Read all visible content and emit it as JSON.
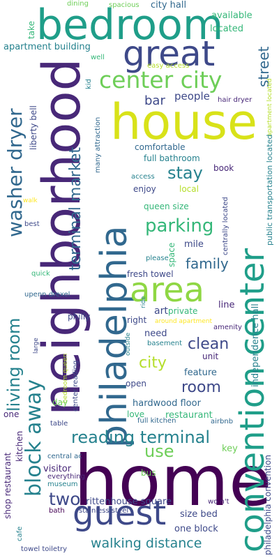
{
  "colors": {
    "background": "#ffffff",
    "palette": [
      "#440154",
      "#482878",
      "#3e4989",
      "#31688e",
      "#26828e",
      "#1f9e89",
      "#35b779",
      "#6ece58",
      "#b5de2b",
      "#fde725"
    ]
  },
  "words": {
    "home": "home",
    "neighborhood": "neighborhood",
    "house": "house",
    "bedroom": "bedroom",
    "philadelphia": "philadelphia",
    "convention_center": "convention center",
    "area": "area",
    "great": "great",
    "guest": "guest",
    "center_city": "center city",
    "block_away": "block away",
    "washer_dryer": "washer dryer",
    "living_room": "living room",
    "reading_terminal": "reading terminal",
    "terminal_market": "terminal market",
    "parking": "parking",
    "stay": "stay",
    "walking_distance": "walking distance",
    "two": "two",
    "use": "use",
    "room": "room",
    "city": "city",
    "family": "family",
    "clean": "clean",
    "street": "street",
    "bar": "bar",
    "people": "people",
    "hair_dryer": "hair dryer",
    "city_hall": "city hall",
    "available": "available",
    "located_top": "located",
    "apartment_building": "apartment building",
    "take": "take",
    "dining": "dining",
    "spacious": "spacious",
    "easy_access": "easy access",
    "well": "well",
    "liberty_bell": "liberty bell",
    "many_attraction": "many attraction",
    "kid": "kid",
    "comfortable": "comfortable",
    "full_bathroom": "full bathroom",
    "book": "book",
    "access": "access",
    "enjoy": "enjoy",
    "local": "local",
    "walk": "walk",
    "queen_size": "queen size",
    "best": "best",
    "apartment_located": "apartment located",
    "public_transportation_located": "public transportation located",
    "centrally_located": "centrally located",
    "space": "space",
    "mile": "mile",
    "please": "please",
    "quick": "quick",
    "fresh_towel": "fresh towel",
    "line": "line",
    "independence_hall": "independence hall",
    "upenn_drexel": "upenn drexel",
    "art": "art",
    "private": "private",
    "ride": "ride",
    "right": "right",
    "around_apartment": "around apartment",
    "amenity": "amenity",
    "philly": "philly",
    "need": "need",
    "large": "large",
    "outside": "outside",
    "basement": "basement",
    "unit": "unit",
    "feature": "feature",
    "bedroom_queen": "bedroom queen",
    "open": "open",
    "center_reading": "center reading",
    "day": "day",
    "hardwood_floor": "hardwood floor",
    "one_left": "one",
    "love": "love",
    "restaurant": "restaurant",
    "full_kitchen": "full kitchen",
    "airbnb": "airbnb",
    "table": "table",
    "key": "key",
    "kitchen": "kitchen",
    "bus": "bus",
    "shop_restaurant": "shop restaurant",
    "visitor": "visitor",
    "central_ac": "central ac",
    "everything": "everything",
    "museum": "museum",
    "rittenhouse_square": "rittenhouse square",
    "wont": "wo n't",
    "philadelphia_convention": "philadelphia convention",
    "size_bed": "size bed",
    "bath": "bath",
    "stainless_steel": "stainless steel",
    "cafe": "cafe",
    "one_block": "one block",
    "towel_toiletry": "towel toiletry"
  }
}
